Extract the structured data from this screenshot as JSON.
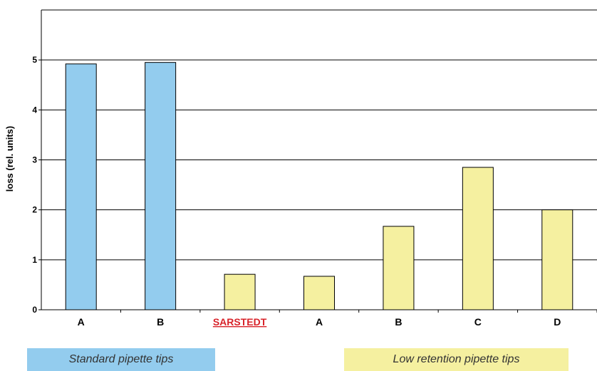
{
  "chart_data": {
    "type": "bar",
    "ylabel": "loss (rel. units)",
    "ylim": [
      0,
      6
    ],
    "yticks": [
      0,
      1,
      2,
      3,
      4,
      5
    ],
    "grid": true,
    "categories": [
      "A",
      "B",
      "SARSTEDT",
      "A",
      "B",
      "C",
      "D"
    ],
    "values": [
      4.92,
      4.95,
      0.71,
      0.67,
      1.67,
      2.85,
      2.0
    ],
    "groups": [
      "Standard pipette tips",
      "Standard pipette tips",
      "Low retention pipette tips",
      "Low retention pipette tips",
      "Low retention pipette tips",
      "Low retention pipette tips",
      "Low retention pipette tips"
    ],
    "highlight_category": "SARSTEDT",
    "colors": {
      "standard": "#93ccee",
      "low_retention": "#f5f0a0",
      "highlight_text": "#d8232a",
      "gridline": "#000000"
    }
  },
  "legend": {
    "standard": "Standard pipette tips",
    "low_retention": "Low retention pipette tips"
  }
}
